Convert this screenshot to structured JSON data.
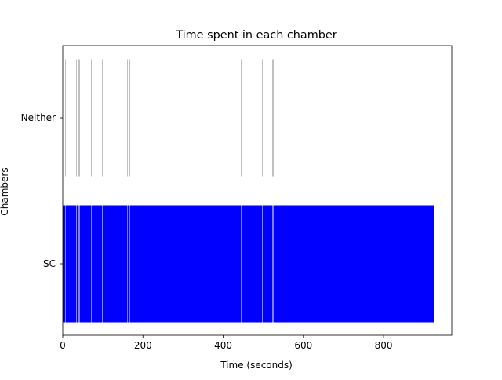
{
  "chart_data": {
    "type": "bar",
    "orientation": "horizontal-broken-bars",
    "title": "Time spent in each chamber",
    "xlabel": "Time (seconds)",
    "ylabel": "Chambers",
    "xlim": [
      0,
      970
    ],
    "xticks": [
      0,
      200,
      400,
      600,
      800
    ],
    "grid": false,
    "categories": [
      "SC",
      "Neither"
    ],
    "series": [
      {
        "category": "Neither",
        "color": "#808080",
        "segments": [
          [
            6.5,
            1.0
          ],
          [
            34.5,
            1.0
          ],
          [
            39.0,
            1.0
          ],
          [
            41.0,
            1.0
          ],
          [
            56.0,
            1.0
          ],
          [
            71.0,
            1.0
          ],
          [
            98.0,
            1.0
          ],
          [
            109.5,
            1.0
          ],
          [
            120.0,
            1.0
          ],
          [
            155.5,
            1.0
          ],
          [
            160.0,
            1.0
          ],
          [
            166.0,
            1.0
          ],
          [
            444.5,
            1.0
          ],
          [
            497.5,
            1.0
          ],
          [
            522.5,
            1.0
          ],
          [
            524.5,
            1.0
          ]
        ]
      },
      {
        "category": "SC",
        "color": "#0000ff",
        "segments": [
          [
            0,
            6.5
          ],
          [
            7.5,
            27.0
          ],
          [
            35.5,
            3.5
          ],
          [
            40.0,
            1.0
          ],
          [
            42.0,
            14.0
          ],
          [
            57.0,
            14.0
          ],
          [
            72.0,
            26.0
          ],
          [
            99.0,
            10.5
          ],
          [
            110.5,
            9.5
          ],
          [
            121.0,
            34.5
          ],
          [
            156.5,
            3.5
          ],
          [
            161.0,
            5.0
          ],
          [
            167.0,
            277.5
          ],
          [
            445.5,
            52.0
          ],
          [
            498.5,
            24.0
          ],
          [
            523.5,
            1.0
          ],
          [
            525.5,
            399.5
          ]
        ]
      }
    ]
  }
}
